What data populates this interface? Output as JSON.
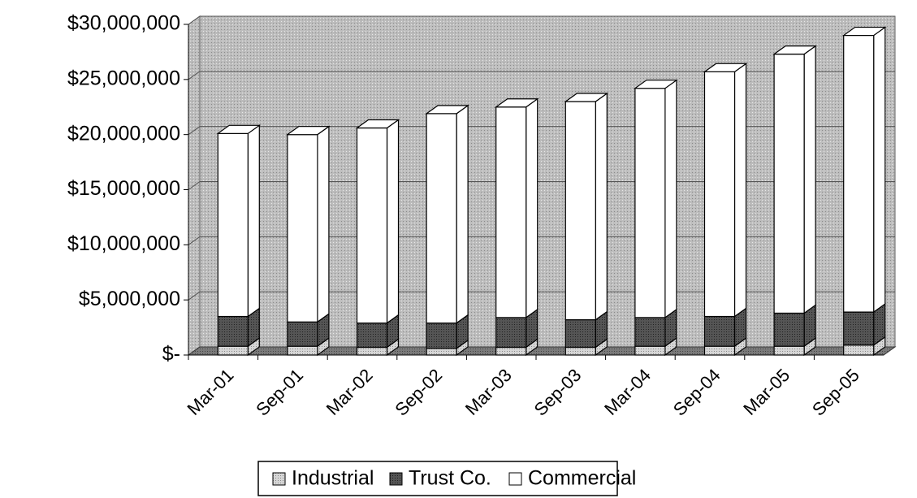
{
  "chart_data": {
    "type": "bar3d_stacked",
    "categories": [
      "Mar-01",
      "Sep-01",
      "Mar-02",
      "Sep-02",
      "Mar-03",
      "Sep-03",
      "Mar-04",
      "Sep-04",
      "Mar-05",
      "Sep-05"
    ],
    "series": [
      {
        "name": "Industrial",
        "color": "#c4c4c4",
        "values": [
          800000,
          800000,
          700000,
          600000,
          700000,
          700000,
          800000,
          800000,
          800000,
          900000
        ]
      },
      {
        "name": "Trust Co.",
        "color": "#4a4a4a",
        "values": [
          2700000,
          2200000,
          2200000,
          2300000,
          2700000,
          2500000,
          2600000,
          2700000,
          3000000,
          3000000
        ]
      },
      {
        "name": "Commercial",
        "color": "#ffffff",
        "values": [
          16600000,
          17000000,
          17700000,
          19000000,
          19100000,
          19800000,
          20800000,
          22200000,
          23500000,
          25100000
        ]
      }
    ],
    "ylim": [
      0,
      30000000
    ],
    "yticks": [
      {
        "value": 0,
        "label": "$-"
      },
      {
        "value": 5000000,
        "label": "$5,000,000"
      },
      {
        "value": 10000000,
        "label": "$10,000,000"
      },
      {
        "value": 15000000,
        "label": "$15,000,000"
      },
      {
        "value": 20000000,
        "label": "$20,000,000"
      },
      {
        "value": 25000000,
        "label": "$25,000,000"
      },
      {
        "value": 30000000,
        "label": "$30,000,000"
      }
    ],
    "grid": true,
    "legend": "bottom"
  }
}
